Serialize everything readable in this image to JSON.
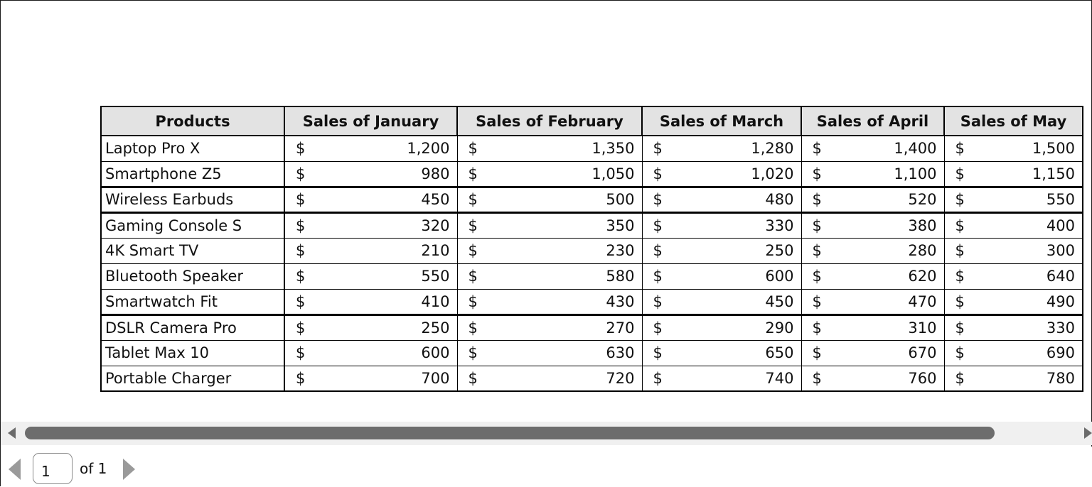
{
  "table": {
    "headers": [
      "Products",
      "Sales of January",
      "Sales of February",
      "Sales of March",
      "Sales of April",
      "Sales of May"
    ],
    "currency_symbol": "$",
    "rows": [
      {
        "product": "Laptop Pro X",
        "values": [
          "1,200",
          "1,350",
          "1,280",
          "1,400",
          "1,500"
        ]
      },
      {
        "product": "Smartphone Z5",
        "values": [
          "980",
          "1,050",
          "1,020",
          "1,100",
          "1,150"
        ]
      },
      {
        "product": "Wireless Earbuds",
        "values": [
          "450",
          "500",
          "480",
          "520",
          "550"
        ]
      },
      {
        "product": "Gaming Console S",
        "values": [
          "320",
          "350",
          "330",
          "380",
          "400"
        ]
      },
      {
        "product": "4K Smart TV",
        "values": [
          "210",
          "230",
          "250",
          "280",
          "300"
        ]
      },
      {
        "product": "Bluetooth Speaker",
        "values": [
          "550",
          "580",
          "600",
          "620",
          "640"
        ]
      },
      {
        "product": "Smartwatch Fit",
        "values": [
          "410",
          "430",
          "450",
          "470",
          "490"
        ]
      },
      {
        "product": "DSLR Camera Pro",
        "values": [
          "250",
          "270",
          "290",
          "310",
          "330"
        ]
      },
      {
        "product": "Tablet Max 10",
        "values": [
          "600",
          "630",
          "650",
          "670",
          "690"
        ]
      },
      {
        "product": "Portable Charger",
        "values": [
          "700",
          "720",
          "740",
          "760",
          "780"
        ]
      }
    ]
  },
  "pager": {
    "current_page": "1",
    "of_text": "of 1"
  },
  "icons": {
    "scroll_left": "scroll-left-arrow-icon",
    "scroll_right": "scroll-right-arrow-icon",
    "prev_page": "previous-page-icon",
    "next_page": "next-page-icon"
  },
  "colors": {
    "header_bg": "#e3e3e3",
    "scroll_thumb": "#6d6d6d",
    "scroll_track": "#f0f0f0"
  }
}
